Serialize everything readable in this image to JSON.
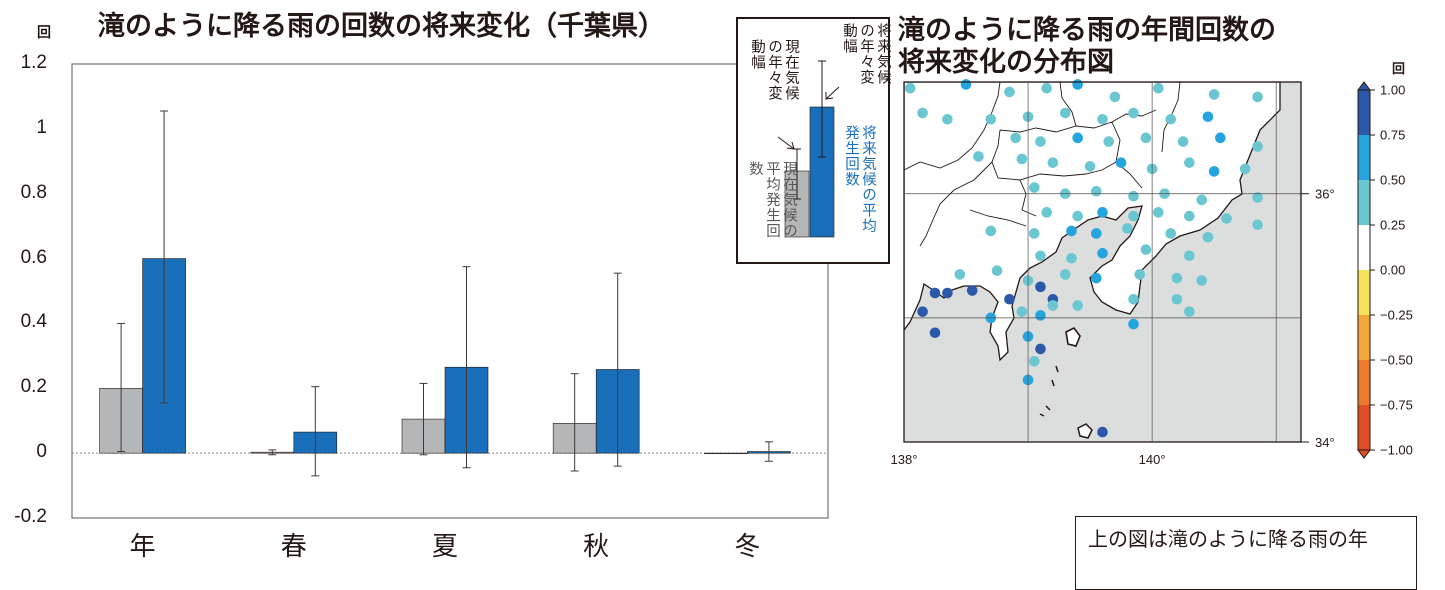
{
  "left_chart_title": "滝のように降る雨の回数の将来変化（千葉県）",
  "left_unit": "回",
  "right_title_line1": "滝のように降る雨の年間回数の",
  "right_title_line2": "将来変化の分布図",
  "colorbar_unit": "回",
  "inset": {
    "future_range": "将来気候の年々変動幅",
    "present_range": "現在気候の年々変動幅",
    "future_mean": "将来気候の平均発生回数",
    "present_mean": "現在気候の平均発生回数"
  },
  "note_text": "上の図は滝のように降る雨の年",
  "colors": {
    "present": "#b5b6b8",
    "future": "#1a6fba",
    "map_land": "#ffffff",
    "map_sea": "#dcdddd"
  },
  "chart_data": [
    {
      "type": "bar",
      "categories": [
        "年",
        "春",
        "夏",
        "秋",
        "冬"
      ],
      "series": [
        {
          "name": "現在気候の平均発生回数",
          "values": [
            0.2,
            0.003,
            0.105,
            0.092,
            0.0
          ],
          "err_low": [
            0.005,
            -0.005,
            -0.005,
            -0.055,
            0.0
          ],
          "err_high": [
            0.4,
            0.01,
            0.215,
            0.245,
            0.0
          ]
        },
        {
          "name": "将来気候の平均発生回数",
          "values": [
            0.6,
            0.065,
            0.265,
            0.258,
            0.005
          ],
          "err_low": [
            0.155,
            -0.07,
            -0.045,
            -0.04,
            -0.025
          ],
          "err_high": [
            1.055,
            0.205,
            0.575,
            0.555,
            0.035
          ]
        }
      ],
      "ylim": [
        -0.2,
        1.2
      ],
      "yticks": [
        "-0.2",
        "0",
        "0.2",
        "0.4",
        "0.6",
        "0.8",
        "1",
        "1.2"
      ],
      "grid": false
    },
    {
      "type": "scatter",
      "x_ticks": [
        "138°",
        "140°"
      ],
      "y_ticks": [
        "36°",
        "34°"
      ],
      "xlim": [
        138,
        141.2
      ],
      "ylim": [
        34,
        36.9
      ],
      "colorbar": {
        "labels": [
          "1.00",
          "0.75",
          "0.50",
          "0.25",
          "0.00",
          "−0.25",
          "−0.50",
          "−0.75",
          "−1.00"
        ],
        "colors": [
          "#2b58a8",
          "#25a5df",
          "#6ac7d2",
          "#ffffff",
          "#f6e35a",
          "#f4a53c",
          "#ec7a2c",
          "#e14c26"
        ]
      },
      "points": [
        {
          "lon": 138.05,
          "lat": 36.85,
          "v": 0.35
        },
        {
          "lon": 138.5,
          "lat": 36.88,
          "v": 0.55
        },
        {
          "lon": 138.85,
          "lat": 36.82,
          "v": 0.45
        },
        {
          "lon": 139.15,
          "lat": 36.85,
          "v": 0.4
        },
        {
          "lon": 139.4,
          "lat": 36.88,
          "v": 0.5
        },
        {
          "lon": 139.7,
          "lat": 36.78,
          "v": 0.35
        },
        {
          "lon": 140.05,
          "lat": 36.85,
          "v": 0.45
        },
        {
          "lon": 140.5,
          "lat": 36.8,
          "v": 0.35
        },
        {
          "lon": 140.85,
          "lat": 36.78,
          "v": 0.45
        },
        {
          "lon": 138.15,
          "lat": 36.65,
          "v": 0.35
        },
        {
          "lon": 138.35,
          "lat": 36.6,
          "v": 0.4
        },
        {
          "lon": 138.7,
          "lat": 36.6,
          "v": 0.45
        },
        {
          "lon": 139.0,
          "lat": 36.62,
          "v": 0.35
        },
        {
          "lon": 139.3,
          "lat": 36.65,
          "v": 0.4
        },
        {
          "lon": 139.6,
          "lat": 36.6,
          "v": 0.45
        },
        {
          "lon": 139.85,
          "lat": 36.65,
          "v": 0.35
        },
        {
          "lon": 140.15,
          "lat": 36.6,
          "v": 0.35
        },
        {
          "lon": 140.45,
          "lat": 36.62,
          "v": 0.55
        },
        {
          "lon": 138.9,
          "lat": 36.45,
          "v": 0.3
        },
        {
          "lon": 139.1,
          "lat": 36.42,
          "v": 0.45
        },
        {
          "lon": 139.4,
          "lat": 36.45,
          "v": 0.55
        },
        {
          "lon": 139.65,
          "lat": 36.42,
          "v": 0.4
        },
        {
          "lon": 139.95,
          "lat": 36.45,
          "v": 0.45
        },
        {
          "lon": 140.25,
          "lat": 36.42,
          "v": 0.35
        },
        {
          "lon": 140.55,
          "lat": 36.45,
          "v": 0.5
        },
        {
          "lon": 140.85,
          "lat": 36.38,
          "v": 0.4
        },
        {
          "lon": 138.6,
          "lat": 36.3,
          "v": 0.4
        },
        {
          "lon": 138.95,
          "lat": 36.28,
          "v": 0.35
        },
        {
          "lon": 139.2,
          "lat": 36.25,
          "v": 0.4
        },
        {
          "lon": 139.5,
          "lat": 36.22,
          "v": 0.45
        },
        {
          "lon": 139.75,
          "lat": 36.25,
          "v": 0.55
        },
        {
          "lon": 140.0,
          "lat": 36.2,
          "v": 0.45
        },
        {
          "lon": 140.3,
          "lat": 36.25,
          "v": 0.35
        },
        {
          "lon": 140.5,
          "lat": 36.18,
          "v": 0.5
        },
        {
          "lon": 140.75,
          "lat": 36.2,
          "v": 0.4
        },
        {
          "lon": 139.05,
          "lat": 36.05,
          "v": 0.4
        },
        {
          "lon": 139.3,
          "lat": 36.0,
          "v": 0.35
        },
        {
          "lon": 139.55,
          "lat": 36.02,
          "v": 0.45
        },
        {
          "lon": 139.85,
          "lat": 35.98,
          "v": 0.35
        },
        {
          "lon": 140.1,
          "lat": 36.0,
          "v": 0.4
        },
        {
          "lon": 140.4,
          "lat": 35.95,
          "v": 0.35
        },
        {
          "lon": 140.85,
          "lat": 35.97,
          "v": 0.4
        },
        {
          "lon": 139.15,
          "lat": 35.85,
          "v": 0.4
        },
        {
          "lon": 139.4,
          "lat": 35.82,
          "v": 0.45
        },
        {
          "lon": 139.6,
          "lat": 35.85,
          "v": 0.55
        },
        {
          "lon": 139.85,
          "lat": 35.82,
          "v": 0.45
        },
        {
          "lon": 140.05,
          "lat": 35.85,
          "v": 0.35
        },
        {
          "lon": 140.3,
          "lat": 35.82,
          "v": 0.45
        },
        {
          "lon": 140.6,
          "lat": 35.8,
          "v": 0.4
        },
        {
          "lon": 140.85,
          "lat": 35.75,
          "v": 0.35
        },
        {
          "lon": 138.7,
          "lat": 35.7,
          "v": 0.35
        },
        {
          "lon": 139.05,
          "lat": 35.68,
          "v": 0.4
        },
        {
          "lon": 139.35,
          "lat": 35.7,
          "v": 0.55
        },
        {
          "lon": 139.55,
          "lat": 35.68,
          "v": 0.65
        },
        {
          "lon": 139.8,
          "lat": 35.72,
          "v": 0.35
        },
        {
          "lon": 140.15,
          "lat": 35.68,
          "v": 0.45
        },
        {
          "lon": 140.45,
          "lat": 35.65,
          "v": 0.4
        },
        {
          "lon": 139.1,
          "lat": 35.5,
          "v": 0.35
        },
        {
          "lon": 139.35,
          "lat": 35.48,
          "v": 0.45
        },
        {
          "lon": 139.6,
          "lat": 35.52,
          "v": 0.55
        },
        {
          "lon": 139.95,
          "lat": 35.55,
          "v": 0.45
        },
        {
          "lon": 140.3,
          "lat": 35.5,
          "v": 0.35
        },
        {
          "lon": 138.45,
          "lat": 35.35,
          "v": 0.45
        },
        {
          "lon": 138.75,
          "lat": 35.38,
          "v": 0.35
        },
        {
          "lon": 139.0,
          "lat": 35.3,
          "v": 0.4
        },
        {
          "lon": 139.3,
          "lat": 35.35,
          "v": 0.45
        },
        {
          "lon": 139.55,
          "lat": 35.32,
          "v": 0.5
        },
        {
          "lon": 139.9,
          "lat": 35.35,
          "v": 0.45
        },
        {
          "lon": 140.2,
          "lat": 35.32,
          "v": 0.35
        },
        {
          "lon": 140.4,
          "lat": 35.3,
          "v": 0.4
        },
        {
          "lon": 138.25,
          "lat": 35.2,
          "v": 0.85
        },
        {
          "lon": 138.35,
          "lat": 35.2,
          "v": 0.85
        },
        {
          "lon": 138.55,
          "lat": 35.22,
          "v": 0.85
        },
        {
          "lon": 138.85,
          "lat": 35.15,
          "v": 0.85
        },
        {
          "lon": 139.1,
          "lat": 35.25,
          "v": 0.85
        },
        {
          "lon": 139.2,
          "lat": 35.15,
          "v": 0.85
        },
        {
          "lon": 139.2,
          "lat": 35.1,
          "v": 0.45
        },
        {
          "lon": 139.4,
          "lat": 35.1,
          "v": 0.45
        },
        {
          "lon": 139.85,
          "lat": 35.15,
          "v": 0.45
        },
        {
          "lon": 140.2,
          "lat": 35.15,
          "v": 0.35
        },
        {
          "lon": 140.3,
          "lat": 35.05,
          "v": 0.45
        },
        {
          "lon": 138.15,
          "lat": 35.05,
          "v": 0.85
        },
        {
          "lon": 138.7,
          "lat": 35.0,
          "v": 0.55
        },
        {
          "lon": 138.95,
          "lat": 35.05,
          "v": 0.45
        },
        {
          "lon": 139.1,
          "lat": 35.02,
          "v": 0.55
        },
        {
          "lon": 139.85,
          "lat": 34.95,
          "v": 0.55
        },
        {
          "lon": 138.25,
          "lat": 34.88,
          "v": 0.85
        },
        {
          "lon": 139.0,
          "lat": 34.85,
          "v": 0.55
        },
        {
          "lon": 139.1,
          "lat": 34.75,
          "v": 0.85
        },
        {
          "lon": 139.05,
          "lat": 34.65,
          "v": 0.45
        },
        {
          "lon": 139.0,
          "lat": 34.5,
          "v": 0.55
        },
        {
          "lon": 139.6,
          "lat": 34.08,
          "v": 0.85
        }
      ]
    }
  ]
}
